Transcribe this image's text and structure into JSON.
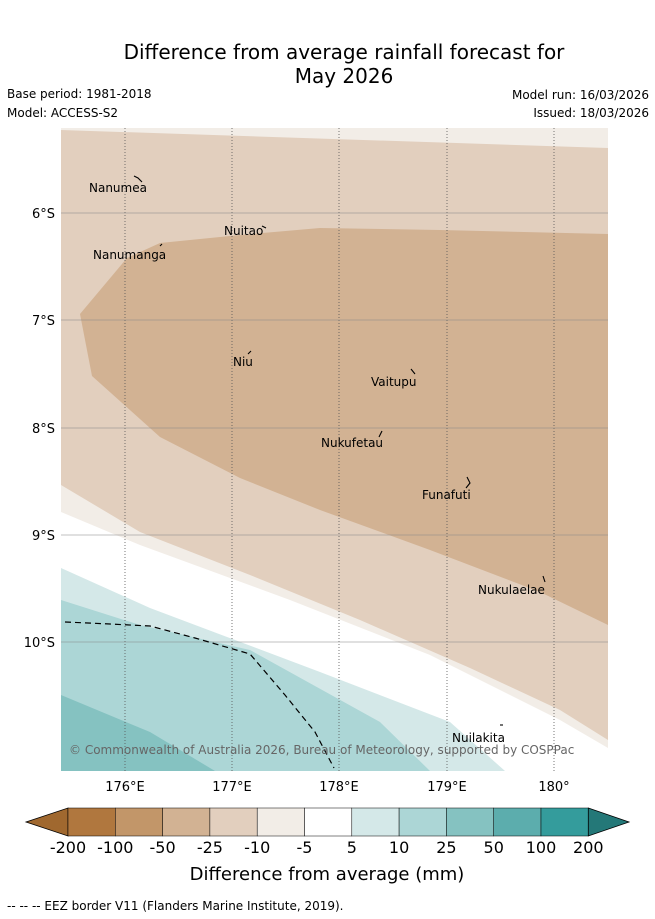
{
  "title": {
    "line1": "Difference from average rainfall forecast for",
    "line2": "May 2026"
  },
  "meta": {
    "base_period": "Base period: 1981-2018",
    "model": "Model: ACCESS-S2",
    "model_run": "Model run: 16/03/2026",
    "issued": "Issued: 18/03/2026"
  },
  "map": {
    "lat_labels": [
      "6°S",
      "7°S",
      "8°S",
      "9°S",
      "10°S"
    ],
    "lon_labels": [
      "176°E",
      "177°E",
      "178°E",
      "179°E",
      "180°"
    ],
    "places": [
      "Nanumea",
      "Nuitao",
      "Nanumanga",
      "Niu",
      "Vaitupu",
      "Nukufetau",
      "Funafuti",
      "Nukulaelae",
      "Nuilakita"
    ],
    "copyright": "© Commonwealth of Australia 2026, Bureau of Meteorology, supported by COSPPac"
  },
  "colorbar": {
    "ticks": [
      "-200",
      "-100",
      "-50",
      "-25",
      "-10",
      "-5",
      "5",
      "10",
      "25",
      "50",
      "100",
      "200"
    ],
    "colors": [
      "#a0682f",
      "#b0773e",
      "#c29669",
      "#d2b293",
      "#e2cfbe",
      "#f2ede7",
      "#ffffff",
      "#d4e8e8",
      "#acd6d6",
      "#85c2c1",
      "#5cadad",
      "#349c9c",
      "#247878"
    ],
    "label": "Difference from average (mm)"
  },
  "footer": {
    "legend": "-- -- -- EEZ border V11 (Flanders Marine Institute, 2019)."
  }
}
